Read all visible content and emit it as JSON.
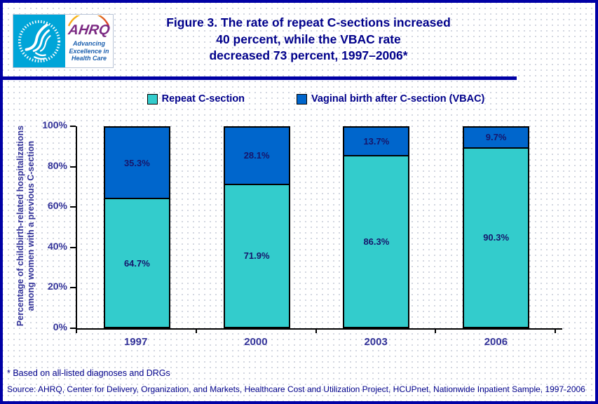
{
  "header": {
    "logo": {
      "acronym": "AHRQ",
      "tagline_lines": [
        "Advancing",
        "Excellence in",
        "Health Care"
      ]
    },
    "title_lines": [
      "Figure 3. The rate of repeat C-sections increased",
      "40 percent, while the VBAC rate",
      "decreased 73 percent, 1997–2006*"
    ]
  },
  "chart_data": {
    "type": "bar",
    "stacked": true,
    "categories": [
      "1997",
      "2000",
      "2003",
      "2006"
    ],
    "series": [
      {
        "name": "Repeat C-section",
        "color": "#33CCCC",
        "values": [
          64.7,
          71.9,
          86.3,
          90.3
        ]
      },
      {
        "name": "Vaginal birth after C-section (VBAC)",
        "color": "#0066CC",
        "values": [
          35.3,
          28.1,
          13.7,
          9.7
        ]
      }
    ],
    "value_suffix": "%",
    "ylabel_line1": "Percentage of childbirth-related hospitalizations",
    "ylabel_line2": "among women with a previous C-section",
    "ylim": [
      0,
      100
    ],
    "yticks": [
      {
        "label": "100%",
        "value": 100
      },
      {
        "label": "80%",
        "value": 80
      },
      {
        "label": "60%",
        "value": 60
      },
      {
        "label": "40%",
        "value": 40
      },
      {
        "label": "20%",
        "value": 20
      },
      {
        "label": "0%",
        "value": 0
      }
    ],
    "legend_position": "top",
    "grid": false
  },
  "footnote": "* Based on all-listed diagnoses and DRGs",
  "source": "Source: AHRQ, Center for Delivery, Organization, and Markets, Healthcare Cost and Utilization Project, HCUPnet, Nationwide Inpatient Sample, 1997-2006",
  "colors": {
    "title_navy": "#00008B",
    "axis_text": "#333399",
    "bar_label": "#16166B",
    "border_navy": "#0000A5",
    "repeat_csection_teal": "#33CCCC",
    "vbac_blue": "#0066CC",
    "logo_cyan": "#00A5D8",
    "logo_purple": "#7B2982"
  }
}
